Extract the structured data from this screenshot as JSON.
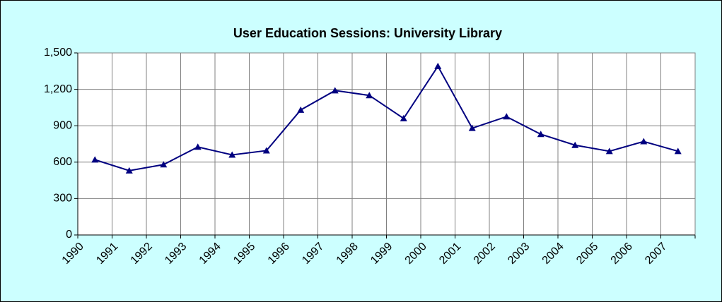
{
  "chart_data": {
    "type": "line",
    "title": "User Education Sessions: University Library",
    "categories": [
      "1990",
      "1991",
      "1992",
      "1993",
      "1994",
      "1995",
      "1996",
      "1997",
      "1998",
      "1999",
      "2000",
      "2001",
      "2002",
      "2003",
      "2004",
      "2005",
      "2006",
      "2007"
    ],
    "series": [
      {
        "name": "User Education Sessions",
        "color": "#000080",
        "values": [
          620,
          530,
          580,
          725,
          660,
          695,
          1030,
          1190,
          1150,
          960,
          1390,
          880,
          975,
          830,
          740,
          690,
          770,
          690
        ]
      }
    ],
    "ylim": [
      0,
      1500
    ],
    "yticks": [
      0,
      300,
      600,
      900,
      {
        "value": 1200,
        "label": "1,200"
      },
      {
        "value": 1500,
        "label": "1,500"
      }
    ],
    "grid": true,
    "legend": false
  }
}
